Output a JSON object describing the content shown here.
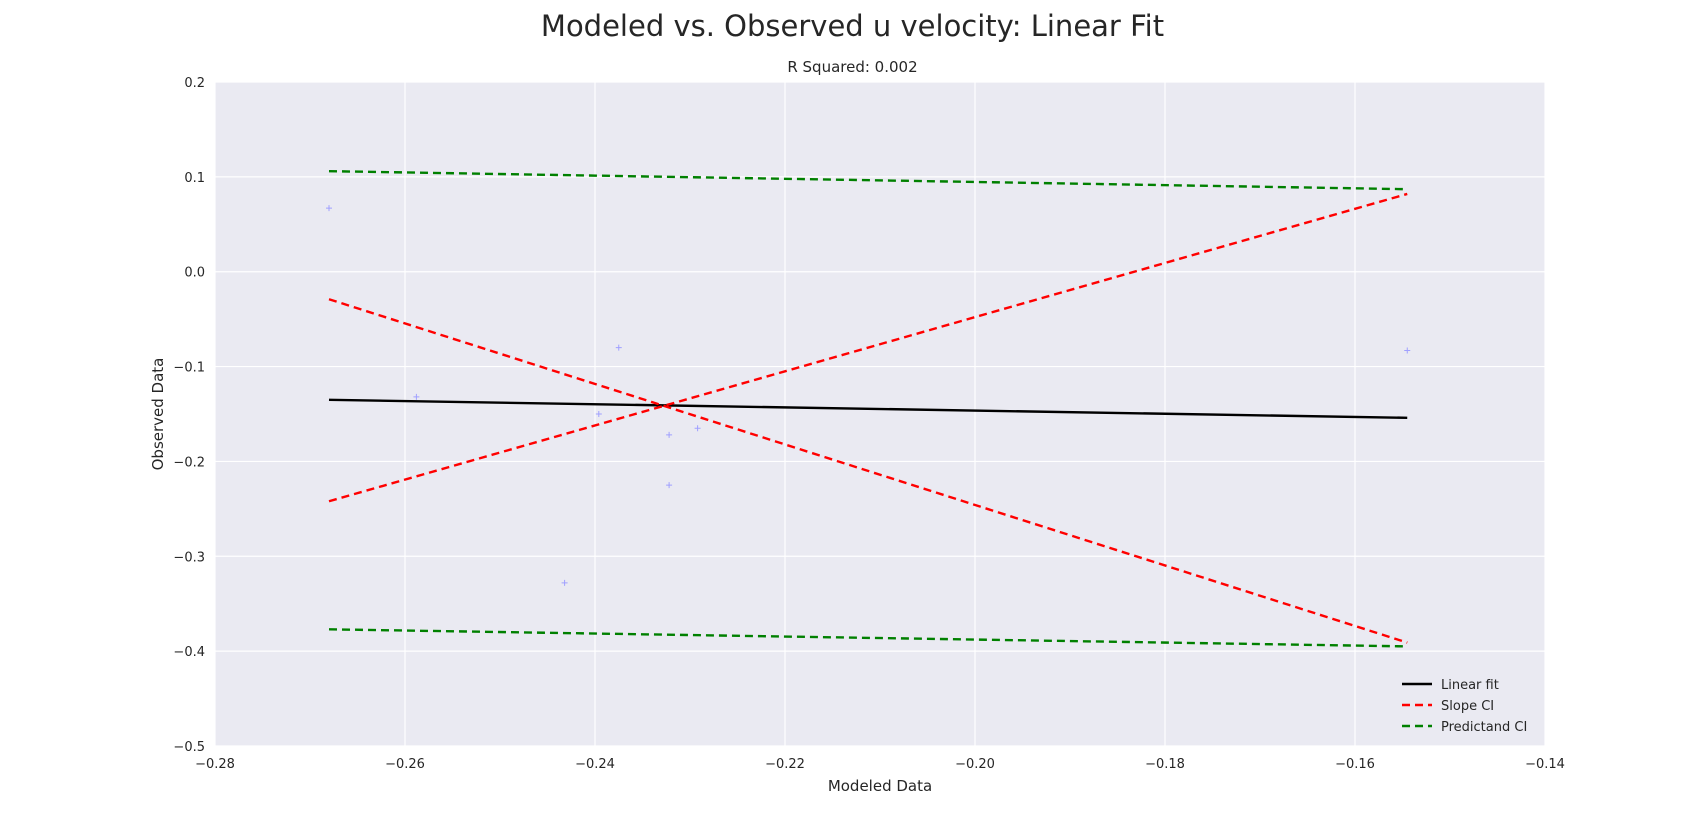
{
  "chart_data": {
    "type": "scatter",
    "title": "Modeled vs. Observed u velocity: Linear Fit",
    "subtitle": "R Squared: 0.002",
    "xlabel": "Modeled Data",
    "ylabel": "Observed Data",
    "xlim": [
      -0.28,
      -0.14
    ],
    "ylim": [
      -0.5,
      0.2
    ],
    "x_ticks": [
      -0.28,
      -0.26,
      -0.24,
      -0.22,
      -0.2,
      -0.18,
      -0.16,
      -0.14
    ],
    "x_tick_labels": [
      "−0.28",
      "−0.26",
      "−0.24",
      "−0.22",
      "−0.20",
      "−0.18",
      "−0.16",
      "−0.14"
    ],
    "y_ticks": [
      0.2,
      0.1,
      0.0,
      -0.1,
      -0.2,
      -0.3,
      -0.4,
      -0.5
    ],
    "y_tick_labels": [
      "0.2",
      "0.1",
      "0.0",
      "−0.1",
      "−0.2",
      "−0.3",
      "−0.4",
      "−0.5"
    ],
    "grid": true,
    "legend_position": "bottom-right",
    "background_color": "#eaeaf2",
    "points": {
      "color": "#a0a0ff",
      "marker": "+",
      "x": [
        -0.268,
        -0.2588,
        -0.2432,
        -0.2396,
        -0.2375,
        -0.2322,
        -0.2322,
        -0.2292,
        -0.1545
      ],
      "y": [
        0.067,
        -0.132,
        -0.328,
        -0.15,
        -0.08,
        -0.172,
        -0.225,
        -0.165,
        -0.083
      ]
    },
    "series": [
      {
        "name": "Linear fit",
        "color": "#000000",
        "dash": "solid",
        "segments": [
          {
            "x": [
              -0.268,
              -0.1545
            ],
            "y": [
              -0.135,
              -0.154
            ]
          }
        ]
      },
      {
        "name": "Slope CI",
        "color": "#ff0000",
        "dash": "dashed",
        "segments": [
          {
            "x": [
              -0.268,
              -0.1545
            ],
            "y": [
              -0.029,
              -0.391
            ]
          },
          {
            "x": [
              -0.268,
              -0.1545
            ],
            "y": [
              -0.242,
              0.082
            ]
          }
        ]
      },
      {
        "name": "Predictand CI",
        "color": "#008000",
        "dash": "dashed",
        "segments": [
          {
            "x": [
              -0.268,
              -0.1545
            ],
            "y": [
              0.106,
              0.087
            ]
          },
          {
            "x": [
              -0.268,
              -0.1545
            ],
            "y": [
              -0.377,
              -0.395
            ]
          }
        ]
      }
    ]
  }
}
